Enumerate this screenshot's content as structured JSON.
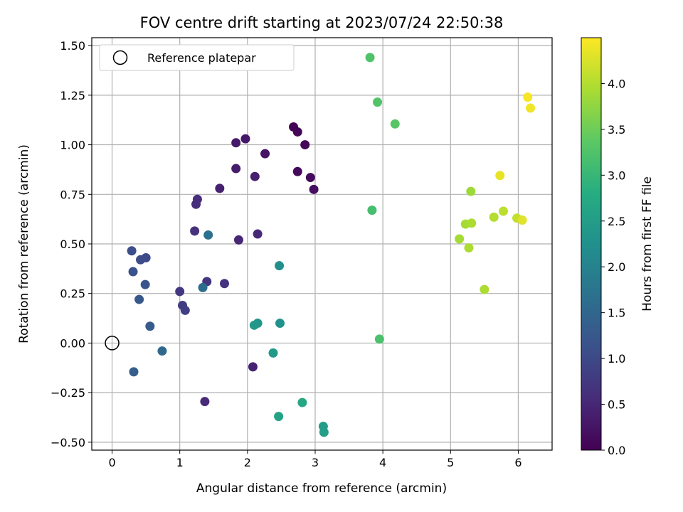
{
  "chart_data": {
    "type": "scatter",
    "title": "FOV centre drift starting at 2023/07/24 22:50:38",
    "xlabel": "Angular distance from reference (arcmin)",
    "ylabel": "Rotation from reference (arcmin)",
    "xlim": [
      -0.3,
      6.5
    ],
    "ylim": [
      -0.54,
      1.54
    ],
    "xticks": [
      0,
      1,
      2,
      3,
      4,
      5,
      6
    ],
    "xtick_labels": [
      "0",
      "1",
      "2",
      "3",
      "4",
      "5",
      "6"
    ],
    "yticks": [
      -0.5,
      -0.25,
      0.0,
      0.25,
      0.5,
      0.75,
      1.0,
      1.25,
      1.5
    ],
    "ytick_labels": [
      "−0.50",
      "−0.25",
      "0.00",
      "0.25",
      "0.50",
      "0.75",
      "1.00",
      "1.25",
      "1.50"
    ],
    "grid": true,
    "legend": {
      "label": "Reference platepar",
      "placement": "top-left"
    },
    "reference_point": {
      "x": 0.0,
      "y": 0.0
    },
    "colorbar": {
      "label": "Hours from first FF file",
      "colormap": "viridis",
      "range": [
        0.0,
        4.5
      ],
      "ticks": [
        0.0,
        0.5,
        1.0,
        1.5,
        2.0,
        2.5,
        3.0,
        3.5,
        4.0
      ],
      "tick_labels": [
        "0.0",
        "0.5",
        "1.0",
        "1.5",
        "2.0",
        "2.5",
        "3.0",
        "3.5",
        "4.0"
      ]
    },
    "points": [
      {
        "x": 2.68,
        "y": 1.09,
        "hours": 0.02
      },
      {
        "x": 2.74,
        "y": 1.065,
        "hours": 0.05
      },
      {
        "x": 2.85,
        "y": 1.0,
        "hours": 0.08
      },
      {
        "x": 2.74,
        "y": 0.865,
        "hours": 0.11
      },
      {
        "x": 2.93,
        "y": 0.835,
        "hours": 0.14
      },
      {
        "x": 2.98,
        "y": 0.775,
        "hours": 0.17
      },
      {
        "x": 2.26,
        "y": 0.955,
        "hours": 0.25
      },
      {
        "x": 1.97,
        "y": 1.03,
        "hours": 0.3
      },
      {
        "x": 1.83,
        "y": 1.01,
        "hours": 0.33
      },
      {
        "x": 1.83,
        "y": 0.88,
        "hours": 0.36
      },
      {
        "x": 2.11,
        "y": 0.84,
        "hours": 0.39
      },
      {
        "x": 1.59,
        "y": 0.78,
        "hours": 0.42
      },
      {
        "x": 2.08,
        "y": -0.12,
        "hours": 0.45
      },
      {
        "x": 1.87,
        "y": 0.52,
        "hours": 0.48
      },
      {
        "x": 2.15,
        "y": 0.55,
        "hours": 0.51
      },
      {
        "x": 1.37,
        "y": -0.295,
        "hours": 0.55
      },
      {
        "x": 1.26,
        "y": 0.725,
        "hours": 0.58
      },
      {
        "x": 1.24,
        "y": 0.7,
        "hours": 0.61
      },
      {
        "x": 1.22,
        "y": 0.565,
        "hours": 0.64
      },
      {
        "x": 1.66,
        "y": 0.3,
        "hours": 0.67
      },
      {
        "x": 1.4,
        "y": 0.31,
        "hours": 0.7
      },
      {
        "x": 1.0,
        "y": 0.26,
        "hours": 0.75
      },
      {
        "x": 1.04,
        "y": 0.19,
        "hours": 0.8
      },
      {
        "x": 1.08,
        "y": 0.165,
        "hours": 0.85
      },
      {
        "x": 0.5,
        "y": 0.43,
        "hours": 1.0
      },
      {
        "x": 0.42,
        "y": 0.42,
        "hours": 1.05
      },
      {
        "x": 0.29,
        "y": 0.465,
        "hours": 1.1
      },
      {
        "x": 0.31,
        "y": 0.36,
        "hours": 1.15
      },
      {
        "x": 0.49,
        "y": 0.295,
        "hours": 1.2
      },
      {
        "x": 0.4,
        "y": 0.22,
        "hours": 1.25
      },
      {
        "x": 0.56,
        "y": 0.085,
        "hours": 1.3
      },
      {
        "x": 0.32,
        "y": -0.145,
        "hours": 1.35
      },
      {
        "x": 0.74,
        "y": -0.04,
        "hours": 1.55
      },
      {
        "x": 1.34,
        "y": 0.28,
        "hours": 1.6
      },
      {
        "x": 1.42,
        "y": 0.545,
        "hours": 1.65
      },
      {
        "x": 2.47,
        "y": 0.39,
        "hours": 2.25
      },
      {
        "x": 2.48,
        "y": 0.1,
        "hours": 2.3
      },
      {
        "x": 2.15,
        "y": 0.1,
        "hours": 2.35
      },
      {
        "x": 2.1,
        "y": 0.09,
        "hours": 2.4
      },
      {
        "x": 2.38,
        "y": -0.05,
        "hours": 2.45
      },
      {
        "x": 3.12,
        "y": -0.42,
        "hours": 2.5
      },
      {
        "x": 3.13,
        "y": -0.45,
        "hours": 2.52
      },
      {
        "x": 2.46,
        "y": -0.37,
        "hours": 2.6
      },
      {
        "x": 2.81,
        "y": -0.3,
        "hours": 2.7
      },
      {
        "x": 3.84,
        "y": 0.67,
        "hours": 3.15
      },
      {
        "x": 3.95,
        "y": 0.02,
        "hours": 3.2
      },
      {
        "x": 3.81,
        "y": 1.44,
        "hours": 3.25
      },
      {
        "x": 3.92,
        "y": 1.215,
        "hours": 3.28
      },
      {
        "x": 4.18,
        "y": 1.105,
        "hours": 3.32
      },
      {
        "x": 5.3,
        "y": 0.765,
        "hours": 3.85
      },
      {
        "x": 5.13,
        "y": 0.525,
        "hours": 3.9
      },
      {
        "x": 5.22,
        "y": 0.6,
        "hours": 3.9
      },
      {
        "x": 5.31,
        "y": 0.605,
        "hours": 3.95
      },
      {
        "x": 5.27,
        "y": 0.48,
        "hours": 3.95
      },
      {
        "x": 5.5,
        "y": 0.27,
        "hours": 3.95
      },
      {
        "x": 5.64,
        "y": 0.635,
        "hours": 4.0
      },
      {
        "x": 5.78,
        "y": 0.665,
        "hours": 4.05
      },
      {
        "x": 5.98,
        "y": 0.63,
        "hours": 4.1
      },
      {
        "x": 6.06,
        "y": 0.62,
        "hours": 4.3
      },
      {
        "x": 5.73,
        "y": 0.845,
        "hours": 4.35
      },
      {
        "x": 6.14,
        "y": 1.24,
        "hours": 4.45
      },
      {
        "x": 6.18,
        "y": 1.185,
        "hours": 4.42
      }
    ]
  }
}
